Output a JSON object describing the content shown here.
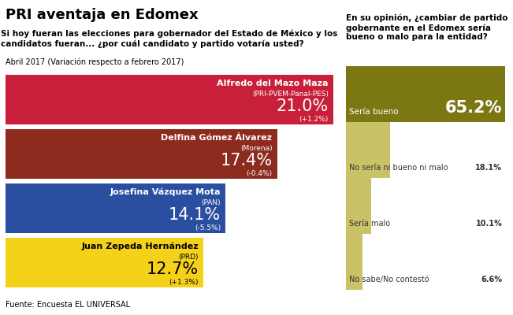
{
  "title": "PRI aventaja en Edomex",
  "source": "Fuente: Encuesta EL UNIVERSAL",
  "chart_data": [
    {
      "type": "bar",
      "orientation": "horizontal",
      "title": "Si hoy fueran las elecciones para gobernador del Estado de México y los candidatos fueran... ¿por cuál candidato y partido votaría usted?",
      "subtitle": "Abril 2017 (Variación respecto a febrero 2017)",
      "categories": [
        "Alfredo del Mazo Maza",
        "Delfina Gómez Álvarez",
        "Josefina Vázquez Mota",
        "Juan Zepeda Hernández"
      ],
      "parties": [
        "(PRI-PVEM-Panal-PES)",
        "(Morena)",
        "(PAN)",
        "(PRD)"
      ],
      "values": [
        21.0,
        17.4,
        14.1,
        12.7
      ],
      "value_labels": [
        "21.0%",
        "17.4%",
        "14.1%",
        "12.7%"
      ],
      "change": [
        1.2,
        -0.4,
        -5.5,
        1.3
      ],
      "change_labels": [
        "(+1.2%)",
        "(-0.4%)",
        "(-5.5%)",
        "(+1.3%)"
      ],
      "colors": [
        "#c8203a",
        "#8e2b1f",
        "#2b4fa0",
        "#f5d21a"
      ],
      "data_labels": true,
      "tick_labels": false,
      "grid": false
    },
    {
      "type": "bar",
      "orientation": "horizontal",
      "title": "En su opinión, ¿cambiar de partido gobernante en el Edomex sería bueno o malo para la entidad?",
      "categories": [
        "Sería bueno",
        "No sería ni bueno ni malo",
        "Sería malo",
        "No sabe/No contestó"
      ],
      "values": [
        65.2,
        18.1,
        10.1,
        6.6
      ],
      "value_labels": [
        "65.2%",
        "18.1%",
        "10.1%",
        "6.6%"
      ],
      "colors": [
        "#7b7814",
        "#c9c266",
        "#c9c266",
        "#c9c266"
      ],
      "data_labels": true,
      "tick_labels": false,
      "grid": false
    }
  ]
}
